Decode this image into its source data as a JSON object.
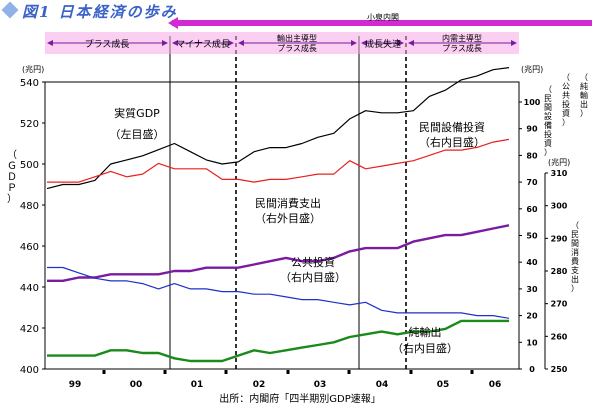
{
  "title": "図1 日本経済の歩み",
  "source": "出所：内閣府「四半期別GDP速報」",
  "unit_left": "(兆円)",
  "unit_right": "(兆円)",
  "unit_right2": "(兆円)",
  "left_axis_label": "（ＧＤＰ）",
  "right_axis_label_a": "（民間設備投資）",
  "right_axis_label_b": "（公共投資）",
  "right_axis_label_c": "（純輸出）",
  "right_outer_label": "（民間消費支出）",
  "phases": {
    "koizumi": "小泉内閣",
    "plus1": "プラス成長",
    "minus": "マイナス成長",
    "export_led": [
      "輸出主導型",
      "プラス成長"
    ],
    "slowdown": "成長失速",
    "domestic_led": [
      "内需主導型",
      "プラス成長"
    ]
  },
  "annotations": {
    "gdp": [
      "実質GDP",
      "（左目盛）"
    ],
    "capex": [
      "民間設備投資",
      "（右内目盛）"
    ],
    "consumption": [
      "民間消費支出",
      "（右外目盛）"
    ],
    "public": [
      "公共投資",
      "（右内目盛）"
    ],
    "netexport": [
      "純輸出",
      "（右内目盛）"
    ]
  },
  "chart_data": {
    "type": "line",
    "x_labels": [
      "99",
      "00",
      "01",
      "02",
      "03",
      "04",
      "05",
      "06"
    ],
    "axes": {
      "left": {
        "min": 400,
        "max": 540,
        "ticks": [
          "400",
          "420",
          "440",
          "460",
          "480",
          "500",
          "520",
          "540"
        ]
      },
      "right_inner": {
        "min": 0,
        "max": 100,
        "ticks": [
          "0",
          "10",
          "20",
          "30",
          "40",
          "50",
          "60",
          "70",
          "80",
          "90",
          "100"
        ]
      },
      "right_outer": {
        "min": 250,
        "max": 310,
        "ticks": [
          "250",
          "260",
          "270",
          "280",
          "290",
          "300",
          "310"
        ]
      }
    },
    "series": [
      {
        "name": "実質GDP",
        "axis": "left",
        "color": "#000000",
        "values": [
          488,
          490,
          490,
          492,
          500,
          502,
          504,
          507,
          510,
          506,
          502,
          500,
          501,
          506,
          508,
          508,
          510,
          513,
          515,
          522,
          526,
          525,
          525,
          526,
          533,
          536,
          541,
          543,
          546,
          547
        ]
      },
      {
        "name": "民間設備投資",
        "axis": "right_inner",
        "color": "#e8201e",
        "values": [
          70,
          70,
          70,
          72,
          74,
          72,
          73,
          77,
          75,
          75,
          75,
          71,
          71,
          70,
          71,
          71,
          72,
          73,
          73,
          78,
          75,
          76,
          77,
          78,
          80,
          82,
          82,
          83,
          85,
          86
        ]
      },
      {
        "name": "民間消費支出",
        "axis": "right_outer",
        "color": "#7a1ba0",
        "values": [
          277,
          277,
          278,
          278,
          279,
          279,
          279,
          279,
          280,
          280,
          281,
          281,
          281,
          282,
          283,
          284,
          283,
          283,
          284,
          286,
          287,
          287,
          287,
          289,
          290,
          291,
          291,
          292,
          293,
          294
        ]
      },
      {
        "name": "公共投資",
        "axis": "right_inner",
        "color": "#2030c8",
        "values": [
          38,
          38,
          36,
          34,
          33,
          33,
          32,
          30,
          32,
          30,
          30,
          29,
          29,
          28,
          28,
          27,
          26,
          26,
          25,
          24,
          25,
          22,
          21,
          21,
          21,
          21,
          21,
          20,
          20,
          19
        ]
      },
      {
        "name": "純輸出",
        "axis": "right_inner",
        "color": "#1a8a1a",
        "values": [
          5,
          5,
          5,
          5,
          7,
          7,
          6,
          6,
          4,
          3,
          3,
          3,
          5,
          7,
          6,
          7,
          8,
          9,
          10,
          12,
          13,
          14,
          13,
          14,
          14,
          15,
          18,
          18,
          18,
          18
        ]
      }
    ],
    "phase_dividers_quarter_index": [
      8,
      12,
      20,
      24
    ]
  }
}
